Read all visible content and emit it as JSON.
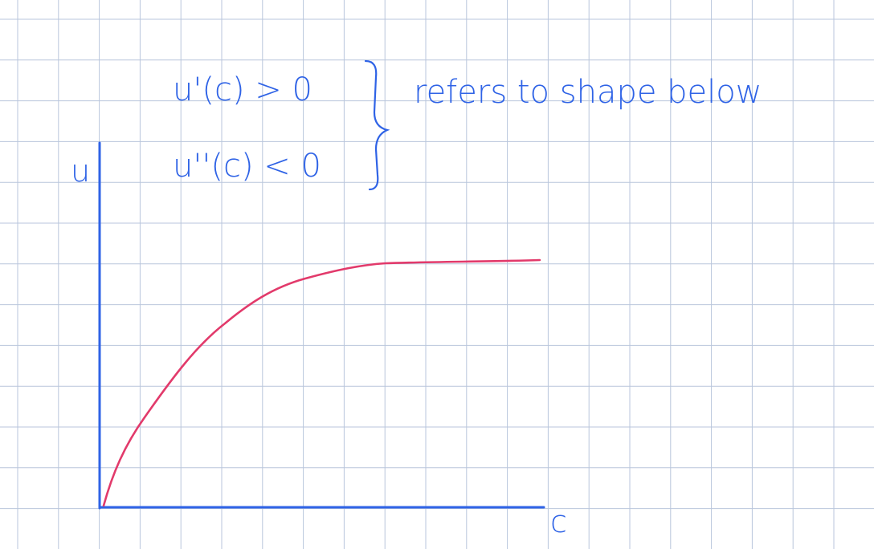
{
  "notes": {
    "first_derivative": "u'(c) > 0",
    "second_derivative": "u''(c) < 0",
    "annotation": "refers to shape below"
  },
  "axes": {
    "y_label": "u",
    "x_label": "c"
  },
  "colors": {
    "grid": "#b9c6dc",
    "ink_blue": "#2f63e6",
    "curve": "#e23a6b",
    "paper": "#ffffff"
  }
}
